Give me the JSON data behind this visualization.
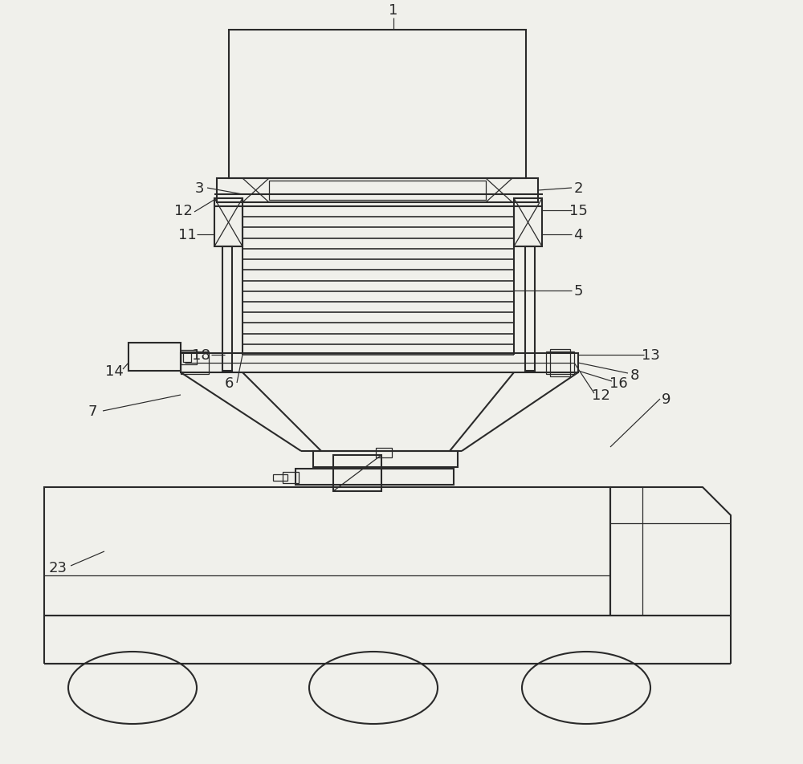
{
  "bg_color": "#f0f0eb",
  "line_color": "#2a2a2a",
  "fig_width": 10.0,
  "fig_height": 9.53,
  "lw": 1.5,
  "lw_thin": 0.9,
  "lw_thick": 2.0,
  "font_size": 13
}
